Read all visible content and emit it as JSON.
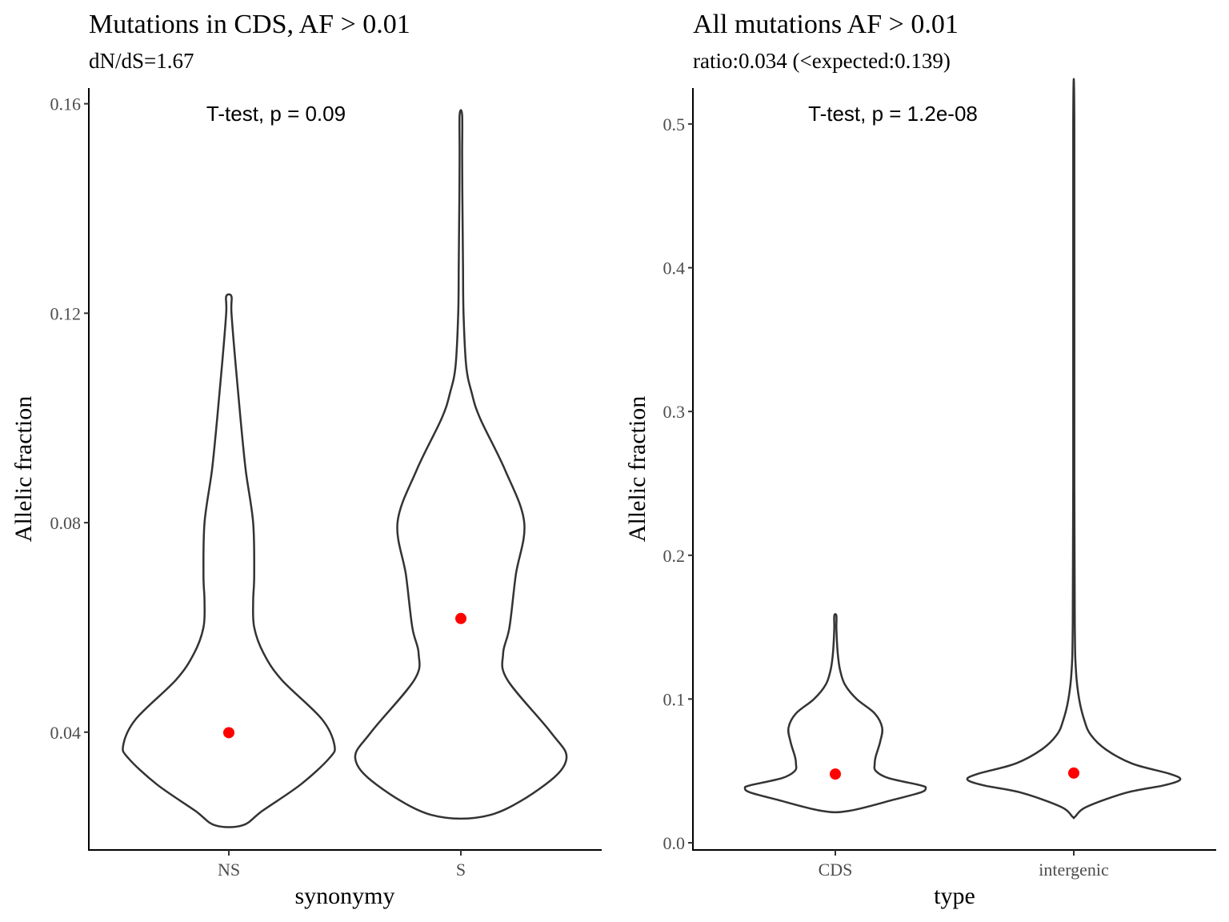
{
  "chart_data": [
    {
      "type": "violin",
      "title": "Mutations in CDS, AF > 0.01",
      "subtitle": "dN/dS=1.67",
      "xlabel": "synonymy",
      "ylabel": "Allelic fraction",
      "annotation": "T-test, p = 0.09",
      "categories": [
        "NS",
        "S"
      ],
      "ylim": [
        0.0175,
        0.163
      ],
      "yticks": [
        0.04,
        0.08,
        0.12,
        0.16
      ],
      "ytick_labels": [
        "0.04",
        "0.08",
        "0.12",
        "0.16"
      ],
      "grid": false,
      "mean_color": "#ff0000",
      "series": [
        {
          "category": "NS",
          "mean": 0.0399,
          "profile": [
            [
              0.0222,
              0.13
            ],
            [
              0.025,
              0.32
            ],
            [
              0.03,
              0.68
            ],
            [
              0.035,
              0.95
            ],
            [
              0.0375,
              1.0
            ],
            [
              0.0425,
              0.88
            ],
            [
              0.05,
              0.5
            ],
            [
              0.055,
              0.33
            ],
            [
              0.06,
              0.24
            ],
            [
              0.065,
              0.23
            ],
            [
              0.07,
              0.24
            ],
            [
              0.08,
              0.23
            ],
            [
              0.09,
              0.16
            ],
            [
              0.1,
              0.11
            ],
            [
              0.11,
              0.065
            ],
            [
              0.12,
              0.025
            ],
            [
              0.1232,
              0.025
            ]
          ]
        },
        {
          "category": "S",
          "mean": 0.0617,
          "profile": [
            [
              0.0242,
              0.28
            ],
            [
              0.03,
              0.8
            ],
            [
              0.035,
              1.0
            ],
            [
              0.04,
              0.85
            ],
            [
              0.05,
              0.44
            ],
            [
              0.055,
              0.4
            ],
            [
              0.06,
              0.46
            ],
            [
              0.07,
              0.52
            ],
            [
              0.08,
              0.6
            ],
            [
              0.09,
              0.42
            ],
            [
              0.1,
              0.18
            ],
            [
              0.105,
              0.1
            ],
            [
              0.11,
              0.05
            ],
            [
              0.12,
              0.025
            ],
            [
              0.13,
              0.02
            ],
            [
              0.14,
              0.015
            ],
            [
              0.15,
              0.012
            ],
            [
              0.1578,
              0.012
            ]
          ]
        }
      ]
    },
    {
      "type": "violin",
      "title": "All mutations AF > 0.01",
      "subtitle": "ratio:0.034 (<expected:0.139)",
      "xlabel": "type",
      "ylabel": "Allelic fraction",
      "annotation": "T-test, p = 1.2e-08",
      "categories": [
        "CDS",
        "intergenic"
      ],
      "ylim": [
        -0.005,
        0.525
      ],
      "yticks": [
        0.0,
        0.1,
        0.2,
        0.3,
        0.4,
        0.5
      ],
      "ytick_labels": [
        "0.0",
        "0.1",
        "0.2",
        "0.3",
        "0.4",
        "0.5"
      ],
      "grid": false,
      "mean_color": "#ff0000",
      "series": [
        {
          "category": "CDS",
          "mean": 0.0478,
          "profile": [
            [
              0.0222,
              0.13
            ],
            [
              0.03,
              0.55
            ],
            [
              0.035,
              0.8
            ],
            [
              0.038,
              0.85
            ],
            [
              0.04,
              0.8
            ],
            [
              0.045,
              0.5
            ],
            [
              0.05,
              0.38
            ],
            [
              0.055,
              0.37
            ],
            [
              0.06,
              0.38
            ],
            [
              0.07,
              0.42
            ],
            [
              0.08,
              0.44
            ],
            [
              0.09,
              0.37
            ],
            [
              0.1,
              0.2
            ],
            [
              0.11,
              0.09
            ],
            [
              0.12,
              0.045
            ],
            [
              0.13,
              0.025
            ],
            [
              0.14,
              0.015
            ],
            [
              0.15,
              0.01
            ],
            [
              0.158,
              0.01
            ]
          ]
        },
        {
          "category": "intergenic",
          "mean": 0.0485,
          "profile": [
            [
              0.018,
              0.01
            ],
            [
              0.025,
              0.12
            ],
            [
              0.035,
              0.5
            ],
            [
              0.04,
              0.85
            ],
            [
              0.044,
              1.0
            ],
            [
              0.048,
              0.9
            ],
            [
              0.055,
              0.55
            ],
            [
              0.065,
              0.3
            ],
            [
              0.075,
              0.16
            ],
            [
              0.085,
              0.1
            ],
            [
              0.1,
              0.05
            ],
            [
              0.12,
              0.02
            ],
            [
              0.15,
              0.01
            ],
            [
              0.25,
              0.005
            ],
            [
              0.5,
              0.005
            ]
          ]
        }
      ]
    }
  ]
}
